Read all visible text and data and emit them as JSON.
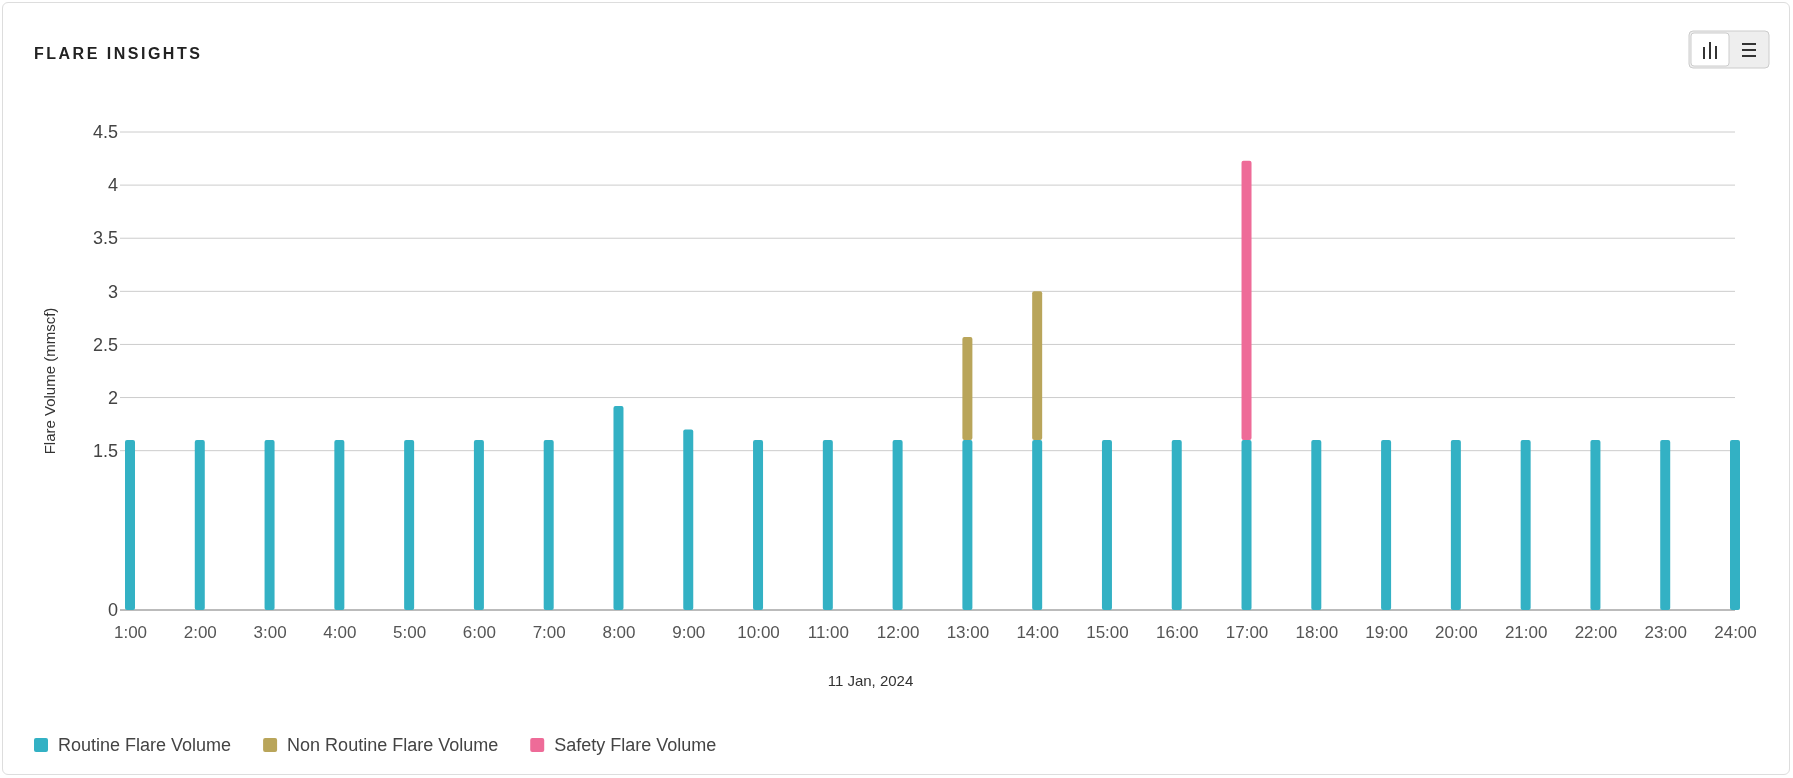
{
  "chart_data": {
    "type": "bar",
    "title": "FLARE INSIGHTS",
    "xlabel": "11 Jan, 2024",
    "ylabel": "Flare Volume (mmscf)",
    "categories": [
      "1:00",
      "2:00",
      "3:00",
      "4:00",
      "5:00",
      "6:00",
      "7:00",
      "8:00",
      "9:00",
      "10:00",
      "11:00",
      "12:00",
      "13:00",
      "14:00",
      "15:00",
      "16:00",
      "17:00",
      "18:00",
      "19:00",
      "20:00",
      "21:00",
      "22:00",
      "23:00",
      "24:00"
    ],
    "stacked": true,
    "series": [
      {
        "name": "Routine Flare Volume",
        "color": "#33b1c4",
        "values": [
          1.6,
          1.6,
          1.6,
          1.6,
          1.6,
          1.6,
          1.6,
          1.92,
          1.7,
          1.6,
          1.6,
          1.6,
          1.6,
          1.6,
          1.6,
          1.6,
          1.6,
          1.6,
          1.6,
          1.6,
          1.6,
          1.6,
          1.6,
          1.6
        ]
      },
      {
        "name": "Non Routine Flare Volume",
        "color": "#b9a55a",
        "values": [
          0,
          0,
          0,
          0,
          0,
          0,
          0,
          0,
          0,
          0,
          0,
          0,
          0.97,
          1.4,
          0,
          0,
          0,
          0,
          0,
          0,
          0,
          0,
          0,
          0
        ]
      },
      {
        "name": "Safety Flare Volume",
        "color": "#ee6b98",
        "values": [
          0,
          0,
          0,
          0,
          0,
          0,
          0,
          0,
          0,
          0,
          0,
          0,
          0,
          0,
          0,
          0,
          2.63,
          0,
          0,
          0,
          0,
          0,
          0,
          0
        ]
      }
    ],
    "ylim": [
      0,
      4.5
    ],
    "yticks": [
      0,
      1.5,
      2,
      2.5,
      3,
      3.5,
      4,
      4.5
    ],
    "grid": "y",
    "legend": "bottom left"
  }
}
